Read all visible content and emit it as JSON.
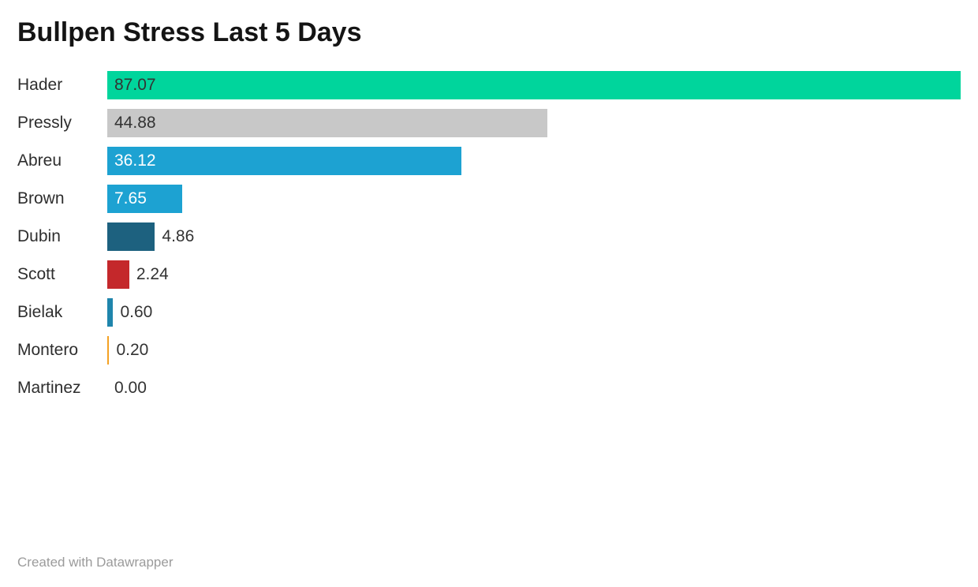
{
  "header": {
    "title": "Bullpen Stress Last 5 Days"
  },
  "footer": {
    "credit": "Created with Datawrapper"
  },
  "chart_data": {
    "type": "bar",
    "orientation": "horizontal",
    "title": "Bullpen Stress Last 5 Days",
    "categories": [
      "Hader",
      "Pressly",
      "Abreu",
      "Brown",
      "Dubin",
      "Scott",
      "Bielak",
      "Montero",
      "Martinez"
    ],
    "values": [
      87.07,
      44.88,
      36.12,
      7.65,
      4.86,
      2.24,
      0.6,
      0.2,
      0.0
    ],
    "value_labels": [
      "87.07",
      "44.88",
      "36.12",
      "7.65",
      "4.86",
      "2.24",
      "0.60",
      "0.20",
      "0.00"
    ],
    "xlim": [
      0,
      87.07
    ],
    "grid": false,
    "legend": false,
    "bar_colors": [
      "#00d59c",
      "#c8c8c8",
      "#1da2d2",
      "#1da2d2",
      "#1d617f",
      "#c4282b",
      "#1f85ac",
      "#f4a123",
      "#1da2d2"
    ],
    "value_label_position": [
      "inside",
      "inside",
      "inside",
      "inside",
      "outside",
      "outside",
      "outside",
      "outside",
      "outside"
    ],
    "value_label_colors": [
      "#333333",
      "#333333",
      "#ffffff",
      "#ffffff",
      "#333333",
      "#333333",
      "#333333",
      "#333333",
      "#333333"
    ]
  }
}
